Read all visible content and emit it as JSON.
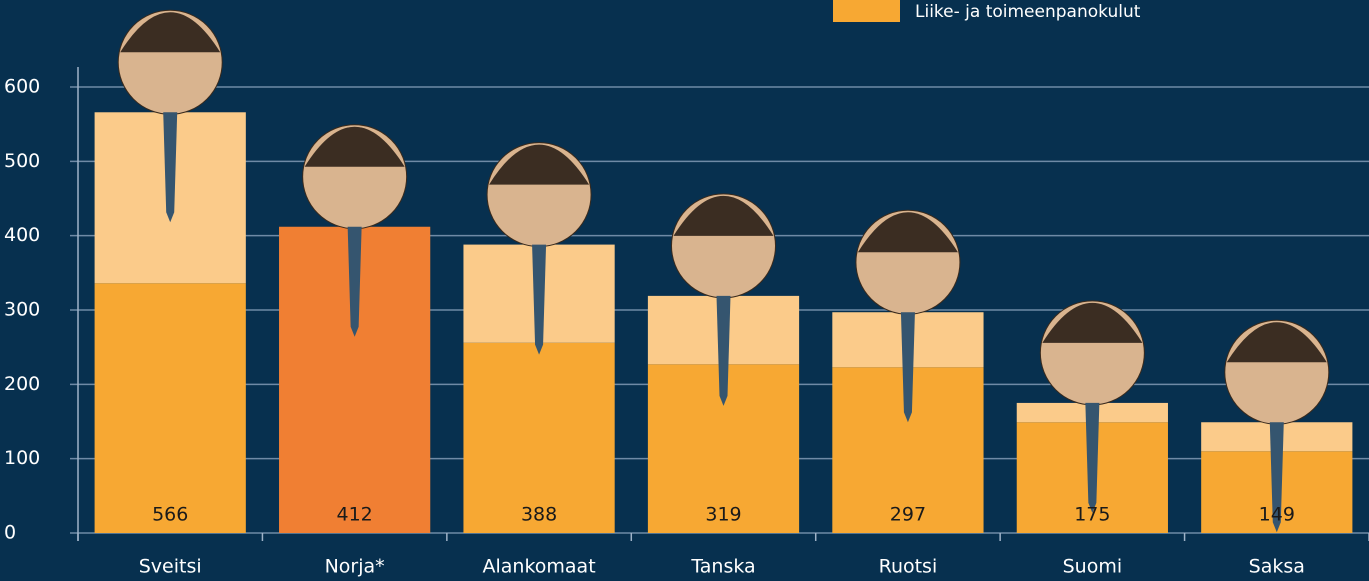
{
  "chart_data": {
    "type": "bar",
    "stacked": true,
    "categories": [
      "Sveitsi",
      "Norja*",
      "Alankomaat",
      "Tanska",
      "Ruotsi",
      "Suomi",
      "Saksa"
    ],
    "series": [
      {
        "name": "Liike- ja toimeenpanokulut",
        "color": "#f7a833",
        "values": [
          336,
          null,
          256,
          227,
          223,
          149,
          110
        ]
      },
      {
        "color": "#fbcb8a",
        "values": [
          230,
          null,
          132,
          92,
          74,
          26,
          39
        ]
      },
      {
        "color": "#f07f33",
        "values": [
          null,
          412,
          null,
          null,
          null,
          null,
          null
        ]
      }
    ],
    "totals": [
      566,
      412,
      388,
      319,
      297,
      175,
      149
    ],
    "ylim": [
      0,
      600
    ],
    "yticks": [
      0,
      100,
      200,
      300,
      400,
      500,
      600
    ],
    "grid": true,
    "legend": "top-right"
  }
}
